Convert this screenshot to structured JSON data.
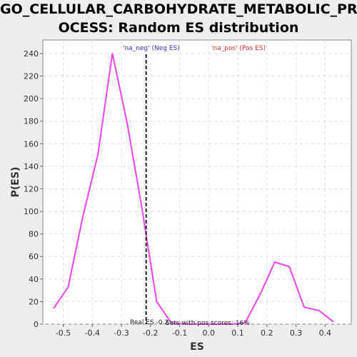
{
  "chart_data": {
    "type": "line",
    "title_lines": [
      "GO_CELLULAR_CARBOHYDRATE_METABOLIC_PR",
      "OCESS: Random ES distribution"
    ],
    "xlabel": "ES",
    "ylabel": "P(ES)",
    "xlim": [
      -0.57,
      0.49
    ],
    "ylim": [
      0,
      252
    ],
    "x_ticks": [
      -0.5,
      -0.4,
      -0.3,
      -0.2,
      -0.1,
      0.0,
      0.1,
      0.2,
      0.3,
      0.4
    ],
    "x_tick_labels": [
      "-0.5",
      "-0.4",
      "-0.3",
      "-0.2",
      "-0.1",
      "0.0",
      "0.1",
      "0.2",
      "0.3",
      "0.4"
    ],
    "y_ticks": [
      0,
      20,
      40,
      60,
      80,
      100,
      120,
      140,
      160,
      180,
      200,
      220,
      240
    ],
    "y_tick_labels": [
      "0",
      "20",
      "40",
      "60",
      "80",
      "100",
      "120",
      "140",
      "160",
      "180",
      "200",
      "220",
      "240"
    ],
    "grid": true,
    "series": [
      {
        "color": "#ee44ee",
        "x": [
          -0.533,
          -0.483,
          -0.432,
          -0.381,
          -0.331,
          -0.28,
          -0.229,
          -0.179,
          -0.128,
          -0.077,
          -0.027,
          0.024,
          0.075,
          0.125,
          0.176,
          0.227,
          0.277,
          0.328,
          0.379,
          0.429
        ],
        "y": [
          14,
          33,
          96,
          150,
          240,
          178,
          102,
          20,
          1,
          0,
          0,
          0,
          0,
          1,
          26,
          55,
          51,
          15,
          12,
          2
        ]
      }
    ],
    "real_es": -0.215,
    "annotations": {
      "neg_label": "'na_neg' (Neg ES)",
      "pos_label": "'na_pos' (Pos ES)",
      "real_es_label": "Real ES -0.2",
      "pos_scores_label": "Sets with pos scores: 16%"
    },
    "colors": {
      "neg": "#3333cc",
      "pos": "#dd3333",
      "line": "#ee44ee",
      "marker": "#222222"
    }
  }
}
